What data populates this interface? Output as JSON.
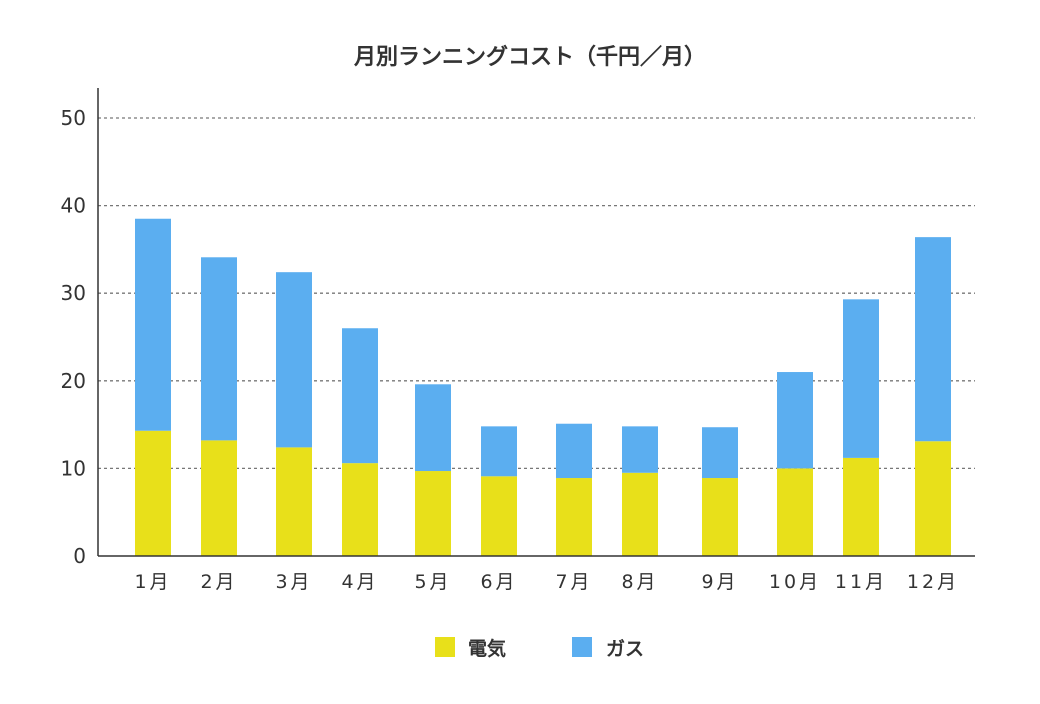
{
  "chart_data": {
    "type": "bar",
    "stacked": true,
    "title": "月別ランニングコスト（千円／月）",
    "xlabel": "",
    "ylabel": "",
    "ylim": [
      0,
      50
    ],
    "yticks": [
      0,
      10,
      20,
      30,
      40,
      50
    ],
    "grid": true,
    "legend_position": "bottom",
    "categories": [
      "1月",
      "2月",
      "3月",
      "4月",
      "5月",
      "6月",
      "7月",
      "8月",
      "9月",
      "10月",
      "11月",
      "12月"
    ],
    "series": [
      {
        "name": "電気",
        "color": "#E8E01A",
        "values": [
          14.3,
          13.2,
          12.4,
          10.6,
          9.7,
          9.1,
          8.9,
          9.5,
          8.9,
          10.0,
          11.2,
          13.1
        ]
      },
      {
        "name": "ガス",
        "color": "#5BAEF0",
        "values": [
          24.2,
          20.9,
          20.0,
          15.4,
          9.9,
          5.7,
          6.2,
          5.3,
          5.8,
          11.0,
          18.1,
          23.3
        ]
      }
    ]
  }
}
